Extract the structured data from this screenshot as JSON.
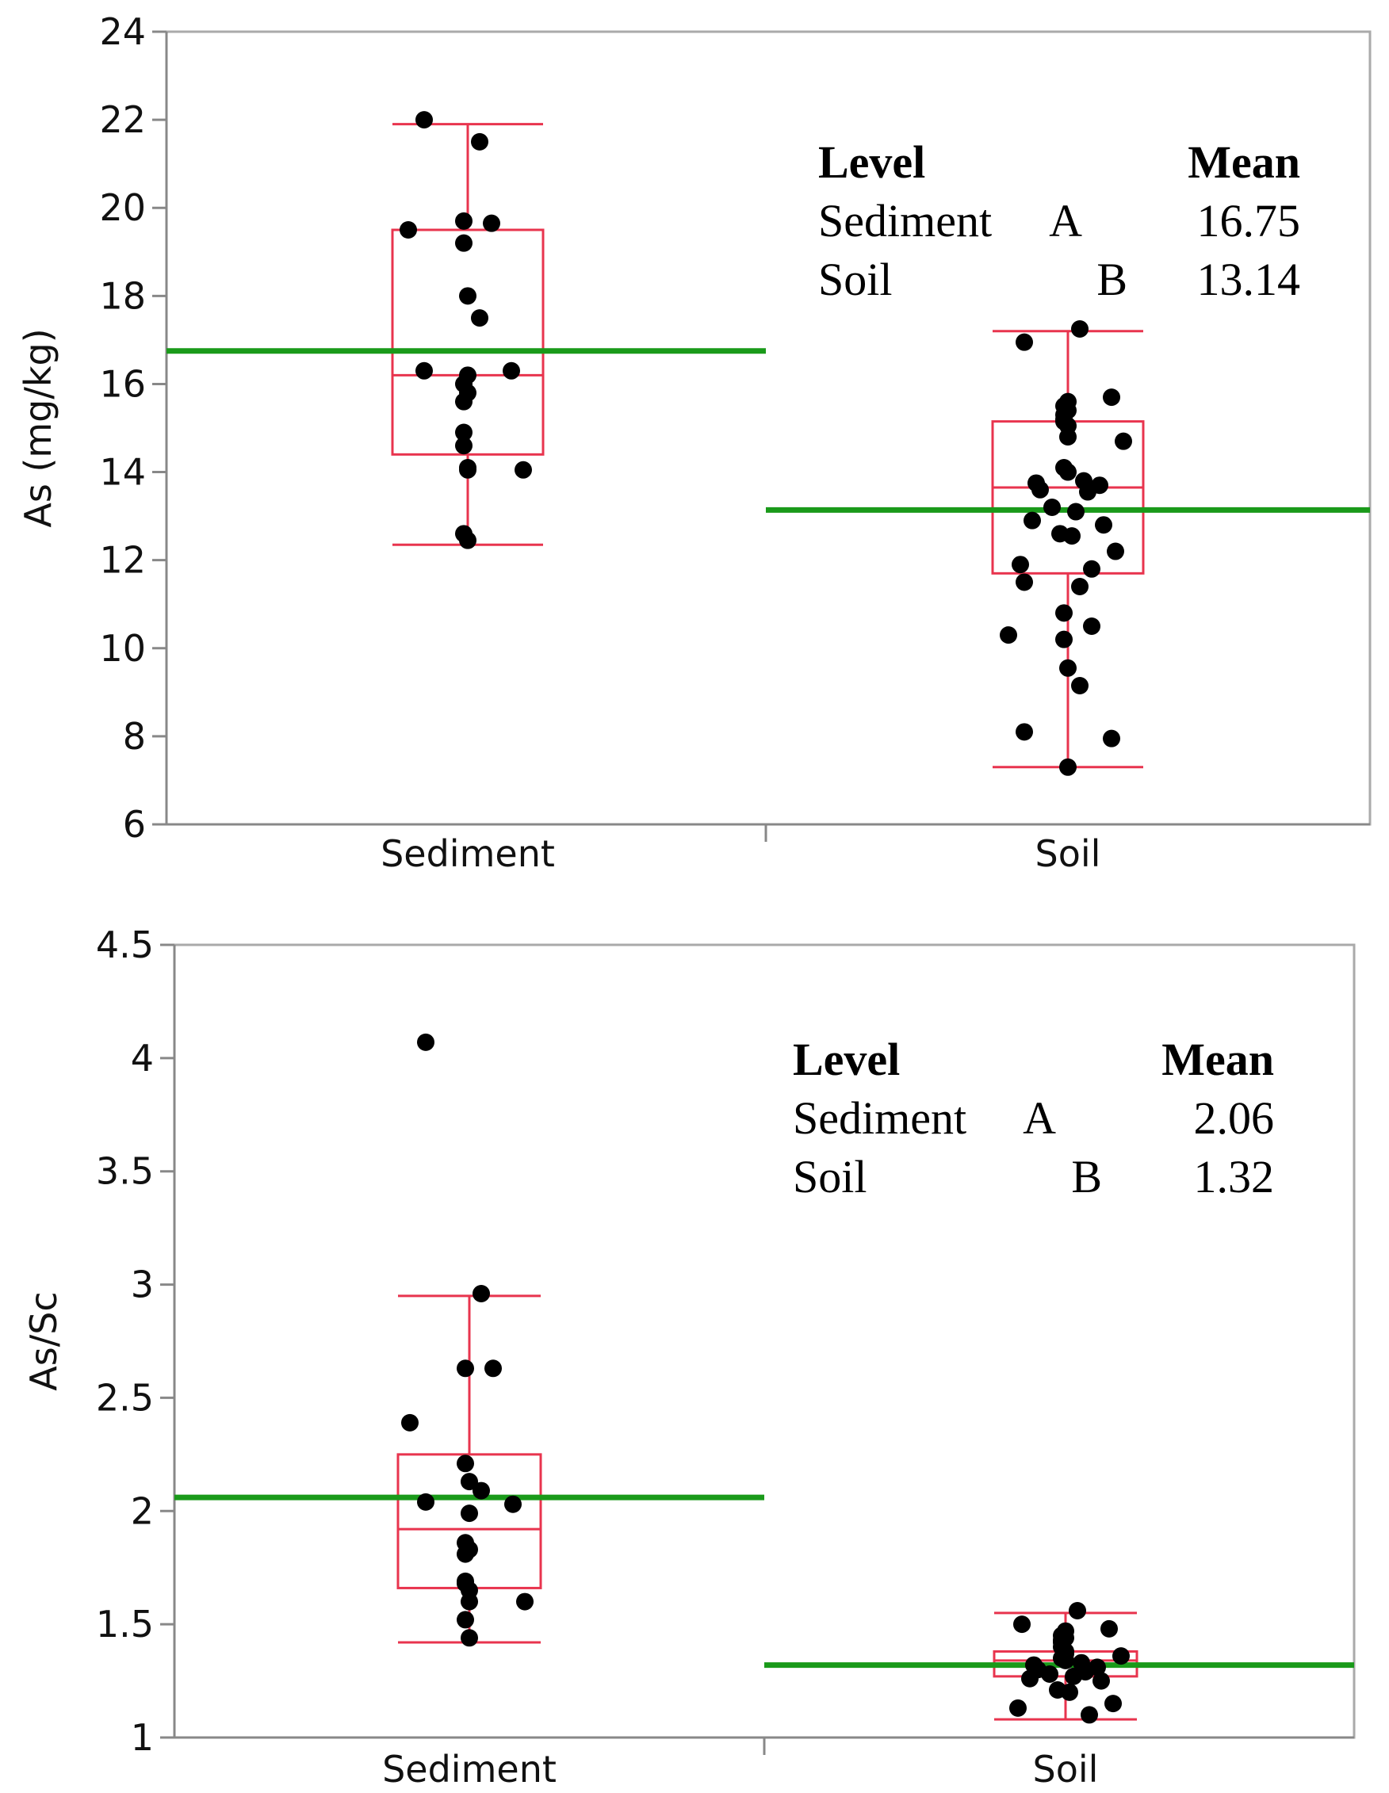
{
  "chart_data": [
    {
      "type": "box",
      "ylabel": "As (mg/kg)",
      "ylim": [
        6,
        24
      ],
      "yticks": [
        "6",
        "8",
        "10",
        "12",
        "14",
        "16",
        "18",
        "20",
        "22",
        "24"
      ],
      "yticks_values": [
        6,
        8,
        10,
        12,
        14,
        16,
        18,
        20,
        22,
        24
      ],
      "categories": [
        "Sediment",
        "Soil"
      ],
      "means": [
        16.75,
        13.14
      ],
      "boxes": [
        {
          "group": "Sediment",
          "whisker_low": 12.35,
          "q1": 14.4,
          "median": 16.2,
          "q3": 19.5,
          "whisker_high": 21.9
        },
        {
          "group": "Soil",
          "whisker_low": 7.3,
          "q1": 11.7,
          "median": 13.65,
          "q3": 15.15,
          "whisker_high": 17.2
        }
      ],
      "points": [
        {
          "group": "Sediment",
          "values": [
            22.0,
            21.5,
            19.7,
            19.65,
            19.5,
            19.2,
            18.0,
            17.5,
            16.3,
            16.3,
            16.2,
            16.0,
            15.8,
            15.6,
            14.9,
            14.6,
            14.1,
            14.05,
            14.05,
            12.6,
            12.45
          ]
        },
        {
          "group": "Soil",
          "values": [
            17.25,
            16.95,
            15.7,
            15.6,
            15.5,
            15.4,
            15.3,
            15.2,
            15.15,
            15.05,
            14.8,
            14.7,
            14.1,
            14.0,
            13.8,
            13.75,
            13.7,
            13.6,
            13.55,
            13.2,
            13.1,
            12.9,
            12.8,
            12.6,
            12.55,
            12.2,
            11.9,
            11.8,
            11.5,
            11.4,
            10.8,
            10.5,
            10.3,
            10.2,
            9.55,
            9.15,
            8.1,
            7.95,
            7.3
          ]
        }
      ],
      "table": {
        "header_level": "Level",
        "header_mean": "Mean",
        "rows": [
          {
            "level": "Sediment",
            "letter": "A",
            "mean": "16.75"
          },
          {
            "level": "Soil",
            "letter": "B",
            "mean": "13.14"
          }
        ]
      },
      "colors": {
        "box": "#e8344e",
        "mean_line": "#1a9a1a",
        "points": "#000000",
        "frame": "#aaaaaa"
      }
    },
    {
      "type": "box",
      "ylabel": "As/Sc",
      "ylim": [
        1,
        4.5
      ],
      "yticks": [
        "1",
        "1.5",
        "2",
        "2.5",
        "3",
        "3.5",
        "4",
        "4.5"
      ],
      "yticks_values": [
        1,
        1.5,
        2,
        2.5,
        3,
        3.5,
        4,
        4.5
      ],
      "categories": [
        "Sediment",
        "Soil"
      ],
      "means": [
        2.06,
        1.32
      ],
      "boxes": [
        {
          "group": "Sediment",
          "whisker_low": 1.42,
          "q1": 1.66,
          "median": 1.92,
          "q3": 2.25,
          "whisker_high": 2.95
        },
        {
          "group": "Soil",
          "whisker_low": 1.08,
          "q1": 1.27,
          "median": 1.34,
          "q3": 1.38,
          "whisker_high": 1.55
        }
      ],
      "points": [
        {
          "group": "Sediment",
          "values": [
            4.07,
            2.96,
            2.63,
            2.63,
            2.39,
            2.21,
            2.13,
            2.09,
            2.04,
            2.03,
            1.99,
            1.86,
            1.83,
            1.81,
            1.69,
            1.68,
            1.65,
            1.6,
            1.6,
            1.52,
            1.44
          ]
        },
        {
          "group": "Soil",
          "values": [
            1.56,
            1.5,
            1.48,
            1.47,
            1.45,
            1.44,
            1.43,
            1.42,
            1.4,
            1.38,
            1.37,
            1.36,
            1.35,
            1.34,
            1.33,
            1.32,
            1.31,
            1.3,
            1.29,
            1.28,
            1.27,
            1.26,
            1.25,
            1.21,
            1.2,
            1.15,
            1.13,
            1.1
          ]
        }
      ],
      "table": {
        "header_level": "Level",
        "header_mean": "Mean",
        "rows": [
          {
            "level": "Sediment",
            "letter": "A",
            "mean": "2.06"
          },
          {
            "level": "Soil",
            "letter": "B",
            "mean": "1.32"
          }
        ]
      },
      "colors": {
        "box": "#e8344e",
        "mean_line": "#1a9a1a",
        "points": "#000000",
        "frame": "#aaaaaa"
      }
    }
  ]
}
